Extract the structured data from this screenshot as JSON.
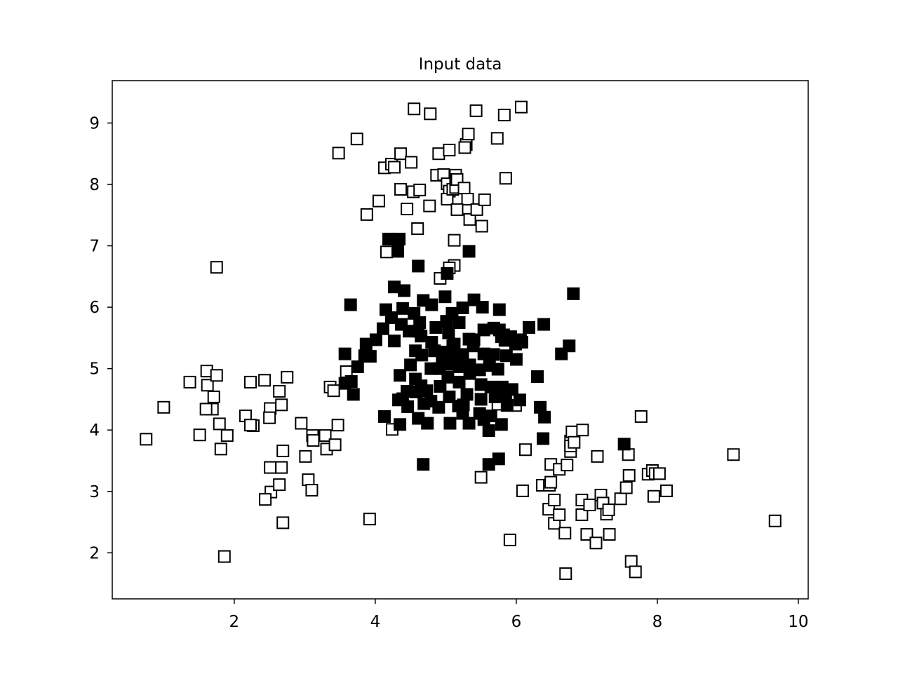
{
  "chart_data": {
    "type": "scatter",
    "title": "Input data",
    "xlabel": "",
    "ylabel": "",
    "xlim": [
      0.27,
      10.14
    ],
    "ylim": [
      1.25,
      9.69
    ],
    "xticks": [
      2,
      4,
      6,
      8,
      10
    ],
    "yticks": [
      2,
      3,
      4,
      5,
      6,
      7,
      8,
      9
    ],
    "grid": false,
    "marker": "square",
    "colors": {
      "edge": "#000000",
      "filled": "#000000",
      "hollow": "#ffffff"
    },
    "series": [
      {
        "style": "hollow",
        "points": [
          [
            0.75,
            3.85
          ],
          [
            1.0,
            4.37
          ],
          [
            1.37,
            4.78
          ],
          [
            1.51,
            3.92
          ],
          [
            1.61,
            4.96
          ],
          [
            1.62,
            4.73
          ],
          [
            1.69,
            4.34
          ],
          [
            1.71,
            4.54
          ],
          [
            1.6,
            4.34
          ],
          [
            1.75,
            4.89
          ],
          [
            1.79,
            4.1
          ],
          [
            1.81,
            3.69
          ],
          [
            1.86,
            1.94
          ],
          [
            1.9,
            3.91
          ],
          [
            1.75,
            6.65
          ],
          [
            2.16,
            4.23
          ],
          [
            2.23,
            4.78
          ],
          [
            2.27,
            4.07
          ],
          [
            2.23,
            4.08
          ],
          [
            2.43,
            4.81
          ],
          [
            2.51,
            4.35
          ],
          [
            2.5,
            4.2
          ],
          [
            2.51,
            3.39
          ],
          [
            2.52,
            2.99
          ],
          [
            2.44,
            2.87
          ],
          [
            2.64,
            4.63
          ],
          [
            2.67,
            4.41
          ],
          [
            2.67,
            3.39
          ],
          [
            2.64,
            3.11
          ],
          [
            2.69,
            3.66
          ],
          [
            2.69,
            2.49
          ],
          [
            2.75,
            4.86
          ],
          [
            2.95,
            4.11
          ],
          [
            3.01,
            3.57
          ],
          [
            3.05,
            3.19
          ],
          [
            3.1,
            3.02
          ],
          [
            3.11,
            3.91
          ],
          [
            3.12,
            3.83
          ],
          [
            3.29,
            3.91
          ],
          [
            3.31,
            3.69
          ],
          [
            3.36,
            4.7
          ],
          [
            3.41,
            4.64
          ],
          [
            3.43,
            3.76
          ],
          [
            3.47,
            4.08
          ],
          [
            3.59,
            4.95
          ],
          [
            3.48,
            8.51
          ],
          [
            3.74,
            8.74
          ],
          [
            3.88,
            7.51
          ],
          [
            3.92,
            2.55
          ],
          [
            4.05,
            7.73
          ],
          [
            4.13,
            8.27
          ],
          [
            4.16,
            6.9
          ],
          [
            4.23,
            8.33
          ],
          [
            4.27,
            8.28
          ],
          [
            4.24,
            4.01
          ],
          [
            4.36,
            8.5
          ],
          [
            4.36,
            7.92
          ],
          [
            4.45,
            7.6
          ],
          [
            4.51,
            8.36
          ],
          [
            4.54,
            7.88
          ],
          [
            4.6,
            7.28
          ],
          [
            4.63,
            7.91
          ],
          [
            4.77,
            7.65
          ],
          [
            4.55,
            9.23
          ],
          [
            4.78,
            9.15
          ],
          [
            4.87,
            8.15
          ],
          [
            4.9,
            8.5
          ],
          [
            4.97,
            8.16
          ],
          [
            5.02,
            8.01
          ],
          [
            5.05,
            8.56
          ],
          [
            5.05,
            7.89
          ],
          [
            5.02,
            7.76
          ],
          [
            5.1,
            7.92
          ],
          [
            5.14,
            7.95
          ],
          [
            5.14,
            8.15
          ],
          [
            5.16,
            8.08
          ],
          [
            5.26,
            7.94
          ],
          [
            5.31,
            7.76
          ],
          [
            5.34,
            7.43
          ],
          [
            5.12,
            7.09
          ],
          [
            5.12,
            6.68
          ],
          [
            5.05,
            6.64
          ],
          [
            4.92,
            6.47
          ],
          [
            5.16,
            7.59
          ],
          [
            5.29,
            8.65
          ],
          [
            5.27,
            8.6
          ],
          [
            5.32,
            8.82
          ],
          [
            5.43,
            9.2
          ],
          [
            5.44,
            7.59
          ],
          [
            5.51,
            7.32
          ],
          [
            5.55,
            7.75
          ],
          [
            5.73,
            8.75
          ],
          [
            5.83,
            9.13
          ],
          [
            5.85,
            8.1
          ],
          [
            6.07,
            9.26
          ],
          [
            5.74,
            4.42
          ],
          [
            5.99,
            4.4
          ],
          [
            5.5,
            3.23
          ],
          [
            5.91,
            2.21
          ],
          [
            6.09,
            3.01
          ],
          [
            6.13,
            3.68
          ],
          [
            6.37,
            3.1
          ],
          [
            6.47,
            3.1
          ],
          [
            6.49,
            3.15
          ],
          [
            6.49,
            3.44
          ],
          [
            6.46,
            2.71
          ],
          [
            6.54,
            2.86
          ],
          [
            6.54,
            2.48
          ],
          [
            6.61,
            2.62
          ],
          [
            6.61,
            3.36
          ],
          [
            6.69,
            2.32
          ],
          [
            6.72,
            3.43
          ],
          [
            6.77,
            3.65
          ],
          [
            6.77,
            3.82
          ],
          [
            6.79,
            3.97
          ],
          [
            6.77,
            3.74
          ],
          [
            6.82,
            3.8
          ],
          [
            6.94,
            4.0
          ],
          [
            6.93,
            2.86
          ],
          [
            6.93,
            2.62
          ],
          [
            7.0,
            2.3
          ],
          [
            7.04,
            2.78
          ],
          [
            7.15,
            3.57
          ],
          [
            7.13,
            2.16
          ],
          [
            7.2,
            2.94
          ],
          [
            7.23,
            2.81
          ],
          [
            7.28,
            2.63
          ],
          [
            7.32,
            2.3
          ],
          [
            7.31,
            2.7
          ],
          [
            7.48,
            2.88
          ],
          [
            7.56,
            3.06
          ],
          [
            7.59,
            3.6
          ],
          [
            7.6,
            3.26
          ],
          [
            7.63,
            1.86
          ],
          [
            7.69,
            1.69
          ],
          [
            7.77,
            4.22
          ],
          [
            7.87,
            3.28
          ],
          [
            7.93,
            3.34
          ],
          [
            7.97,
            3.29
          ],
          [
            7.95,
            2.92
          ],
          [
            8.03,
            3.29
          ],
          [
            8.13,
            3.01
          ],
          [
            6.7,
            1.66
          ],
          [
            9.08,
            3.6
          ],
          [
            9.67,
            2.52
          ]
        ]
      },
      {
        "style": "filled",
        "points": [
          [
            4.19,
            7.11
          ],
          [
            4.34,
            7.11
          ],
          [
            4.32,
            6.91
          ],
          [
            4.61,
            6.67
          ],
          [
            5.02,
            6.55
          ],
          [
            5.33,
            6.91
          ],
          [
            4.27,
            6.33
          ],
          [
            4.41,
            6.27
          ],
          [
            6.81,
            6.22
          ],
          [
            3.65,
            6.04
          ],
          [
            4.15,
            5.96
          ],
          [
            4.23,
            5.83
          ],
          [
            4.39,
            5.98
          ],
          [
            4.55,
            5.9
          ],
          [
            4.68,
            6.11
          ],
          [
            4.8,
            6.04
          ],
          [
            4.99,
            6.17
          ],
          [
            5.09,
            5.9
          ],
          [
            5.24,
            5.99
          ],
          [
            5.4,
            6.12
          ],
          [
            5.52,
            6.0
          ],
          [
            5.76,
            5.96
          ],
          [
            4.63,
            5.75
          ],
          [
            4.61,
            5.61
          ],
          [
            4.86,
            5.67
          ],
          [
            5.04,
            5.58
          ],
          [
            5.19,
            5.75
          ],
          [
            5.33,
            5.48
          ],
          [
            5.54,
            5.63
          ],
          [
            5.68,
            5.66
          ],
          [
            5.82,
            5.55
          ],
          [
            5.92,
            5.52
          ],
          [
            6.06,
            5.47
          ],
          [
            6.18,
            5.67
          ],
          [
            6.39,
            5.72
          ],
          [
            5.99,
            5.4
          ],
          [
            6.0,
            5.15
          ],
          [
            3.87,
            5.4
          ],
          [
            4.01,
            5.47
          ],
          [
            4.27,
            5.45
          ],
          [
            3.85,
            5.21
          ],
          [
            3.93,
            5.2
          ],
          [
            3.75,
            5.03
          ],
          [
            3.57,
            5.24
          ],
          [
            3.57,
            4.76
          ],
          [
            3.66,
            4.79
          ],
          [
            3.69,
            4.58
          ],
          [
            4.57,
            5.29
          ],
          [
            4.66,
            5.22
          ],
          [
            4.84,
            5.29
          ],
          [
            4.95,
            5.18
          ],
          [
            5.12,
            5.4
          ],
          [
            5.24,
            5.23
          ],
          [
            5.4,
            5.47
          ],
          [
            5.54,
            5.24
          ],
          [
            5.68,
            5.23
          ],
          [
            5.86,
            5.21
          ],
          [
            5.62,
            5.05
          ],
          [
            5.74,
            4.99
          ],
          [
            5.48,
            4.98
          ],
          [
            5.34,
            4.92
          ],
          [
            5.19,
            5.03
          ],
          [
            5.04,
            5.07
          ],
          [
            4.91,
            5.0
          ],
          [
            4.79,
            5.0
          ],
          [
            5.03,
            4.86
          ],
          [
            5.19,
            4.78
          ],
          [
            5.5,
            4.74
          ],
          [
            5.64,
            4.7
          ],
          [
            5.8,
            4.7
          ],
          [
            5.7,
            4.54
          ],
          [
            5.85,
            4.58
          ],
          [
            5.87,
            4.4
          ],
          [
            5.5,
            4.5
          ],
          [
            5.3,
            4.58
          ],
          [
            5.18,
            4.39
          ],
          [
            5.05,
            4.54
          ],
          [
            4.92,
            4.71
          ],
          [
            4.73,
            4.64
          ],
          [
            4.57,
            4.83
          ],
          [
            4.45,
            4.63
          ],
          [
            4.35,
            4.89
          ],
          [
            4.39,
            4.51
          ],
          [
            4.58,
            4.62
          ],
          [
            4.69,
            4.43
          ],
          [
            4.79,
            4.47
          ],
          [
            4.13,
            4.22
          ],
          [
            4.35,
            4.09
          ],
          [
            4.61,
            4.19
          ],
          [
            4.74,
            4.11
          ],
          [
            5.24,
            4.27
          ],
          [
            5.33,
            4.11
          ],
          [
            5.48,
            4.27
          ],
          [
            5.61,
            3.99
          ],
          [
            5.64,
            4.23
          ],
          [
            5.79,
            4.09
          ],
          [
            6.05,
            4.49
          ],
          [
            6.3,
            4.87
          ],
          [
            6.34,
            4.37
          ],
          [
            6.4,
            4.21
          ],
          [
            6.38,
            3.86
          ],
          [
            6.75,
            5.37
          ],
          [
            6.64,
            5.24
          ],
          [
            4.68,
            3.44
          ],
          [
            5.61,
            3.44
          ],
          [
            5.75,
            3.53
          ],
          [
            4.33,
            4.49
          ],
          [
            4.46,
            4.38
          ],
          [
            4.11,
            5.65
          ],
          [
            4.37,
            5.72
          ],
          [
            4.48,
            5.61
          ],
          [
            4.65,
            5.53
          ],
          [
            4.8,
            5.43
          ],
          [
            4.99,
            5.27
          ],
          [
            5.15,
            5.2
          ],
          [
            5.34,
            5.06
          ],
          [
            6.08,
            5.43
          ],
          [
            7.53,
            3.77
          ],
          [
            5.76,
            5.63
          ],
          [
            5.84,
            5.46
          ],
          [
            5.01,
            5.77
          ],
          [
            5.1,
            5.37
          ],
          [
            5.25,
            4.41
          ],
          [
            5.39,
            5.37
          ],
          [
            5.54,
            4.17
          ],
          [
            5.79,
            5.52
          ],
          [
            5.94,
            4.66
          ],
          [
            4.5,
            5.06
          ],
          [
            4.65,
            4.72
          ],
          [
            4.9,
            4.37
          ],
          [
            5.06,
            4.11
          ]
        ]
      }
    ]
  }
}
